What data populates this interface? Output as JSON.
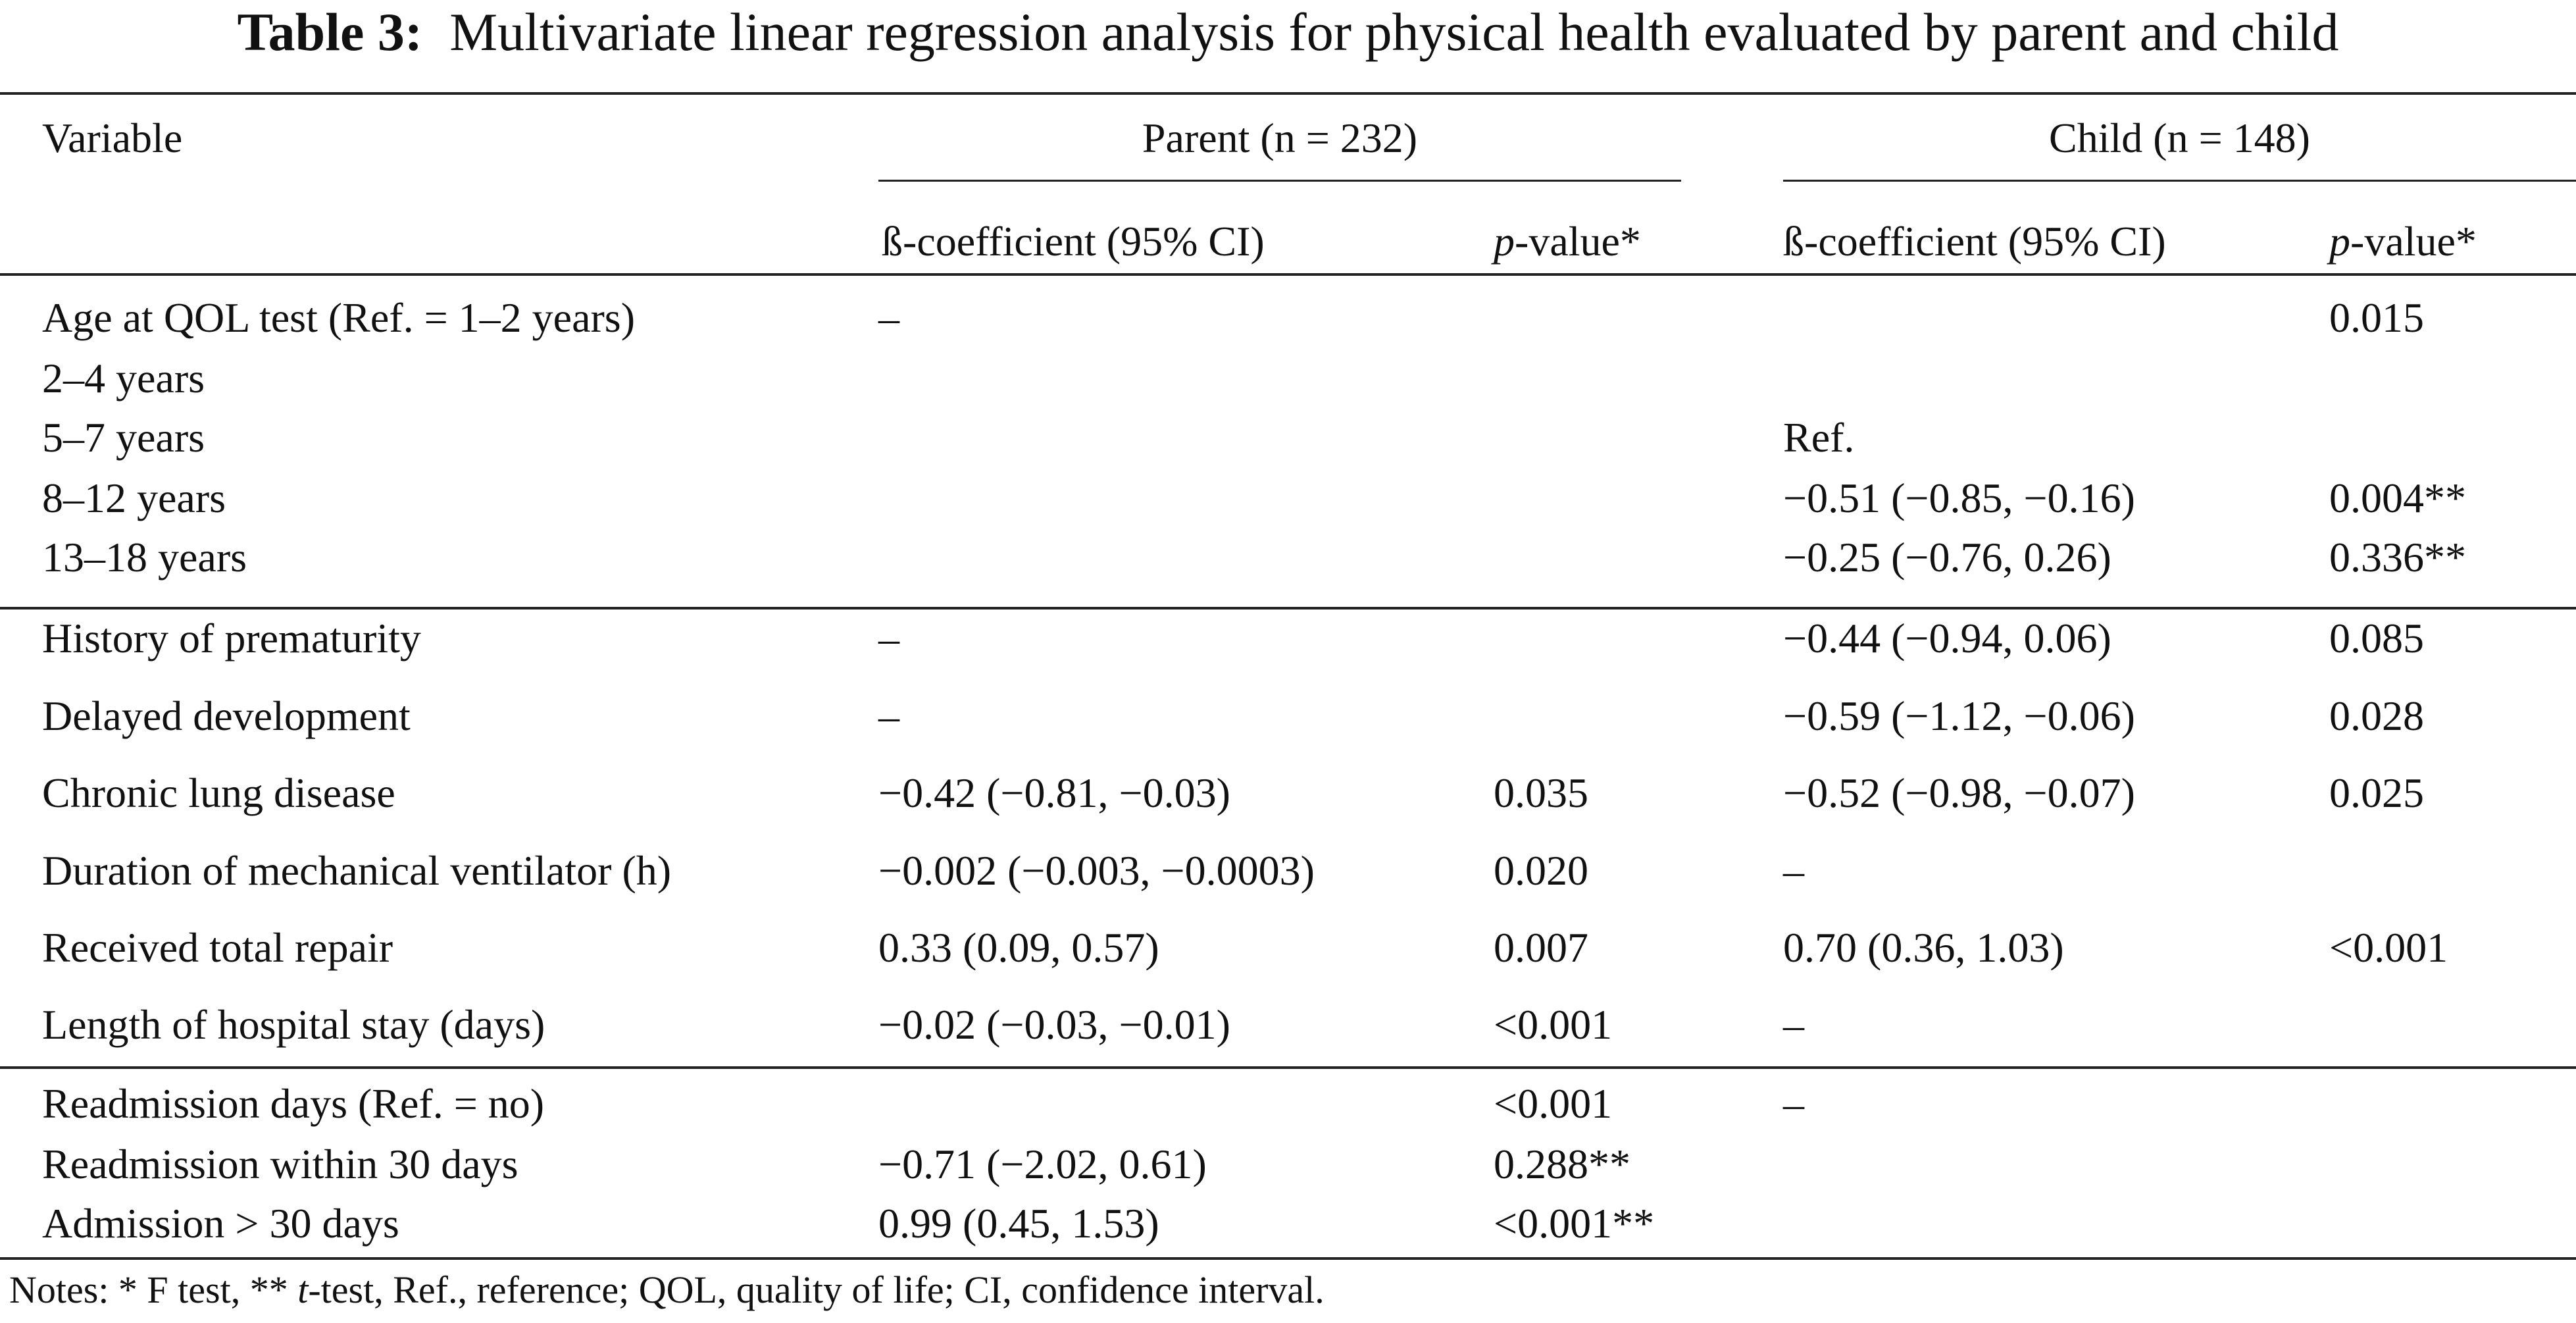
{
  "title": {
    "label": "Table 3:",
    "text": "Multivariate linear regression analysis for physical health evaluated by parent and child"
  },
  "header": {
    "variable": "Variable",
    "parent_group": "Parent (n = 232)",
    "child_group": "Child (n = 148)",
    "beta_label": "ß-coefficient (95% CI)",
    "p_italic": "p",
    "p_rest": "-value*"
  },
  "rows": [
    {
      "variable": "Age at QOL test (Ref. = 1–2 years)",
      "parent_beta": "–",
      "parent_p": "",
      "child_beta": "",
      "child_p": "0.015"
    },
    {
      "variable": "2–4 years",
      "parent_beta": "",
      "parent_p": "",
      "child_beta": "",
      "child_p": ""
    },
    {
      "variable": "5–7 years",
      "parent_beta": "",
      "parent_p": "",
      "child_beta": "Ref.",
      "child_p": ""
    },
    {
      "variable": "8–12 years",
      "parent_beta": "",
      "parent_p": "",
      "child_beta": "−0.51 (−0.85, −0.16)",
      "child_p": "0.004**"
    },
    {
      "variable": "13–18 years",
      "parent_beta": "",
      "parent_p": "",
      "child_beta": "−0.25 (−0.76, 0.26)",
      "child_p": "0.336**"
    },
    {
      "variable": "History of prematurity",
      "parent_beta": "–",
      "parent_p": "",
      "child_beta": "−0.44 (−0.94, 0.06)",
      "child_p": "0.085"
    },
    {
      "variable": "Delayed development",
      "parent_beta": "–",
      "parent_p": "",
      "child_beta": "−0.59 (−1.12, −0.06)",
      "child_p": "0.028"
    },
    {
      "variable": "Chronic lung disease",
      "parent_beta": "−0.42 (−0.81, −0.03)",
      "parent_p": "0.035",
      "child_beta": "−0.52 (−0.98, −0.07)",
      "child_p": "0.025"
    },
    {
      "variable": "Duration of mechanical ventilator (h)",
      "parent_beta": "−0.002 (−0.003, −0.0003)",
      "parent_p": "0.020",
      "child_beta": "–",
      "child_p": ""
    },
    {
      "variable": "Received total repair",
      "parent_beta": "0.33 (0.09, 0.57)",
      "parent_p": "0.007",
      "child_beta": "0.70 (0.36, 1.03)",
      "child_p": "<0.001"
    },
    {
      "variable": "Length of hospital stay (days)",
      "parent_beta": "−0.02 (−0.03, −0.01)",
      "parent_p": "<0.001",
      "child_beta": "–",
      "child_p": ""
    },
    {
      "variable": "Readmission days (Ref. = no)",
      "parent_beta": "",
      "parent_p": "<0.001",
      "child_beta": "–",
      "child_p": ""
    },
    {
      "variable": "Readmission within 30 days",
      "parent_beta": "−0.71 (−2.02, 0.61)",
      "parent_p": "0.288**",
      "child_beta": "",
      "child_p": ""
    },
    {
      "variable": "Admission > 30 days",
      "parent_beta": "0.99 (0.45, 1.53)",
      "parent_p": "<0.001**",
      "child_beta": "",
      "child_p": ""
    }
  ],
  "notes": {
    "pre": "Notes: * F test, ** ",
    "t_italic": "t",
    "post": "-test, Ref., reference; QOL, quality of life; CI, confidence interval."
  }
}
